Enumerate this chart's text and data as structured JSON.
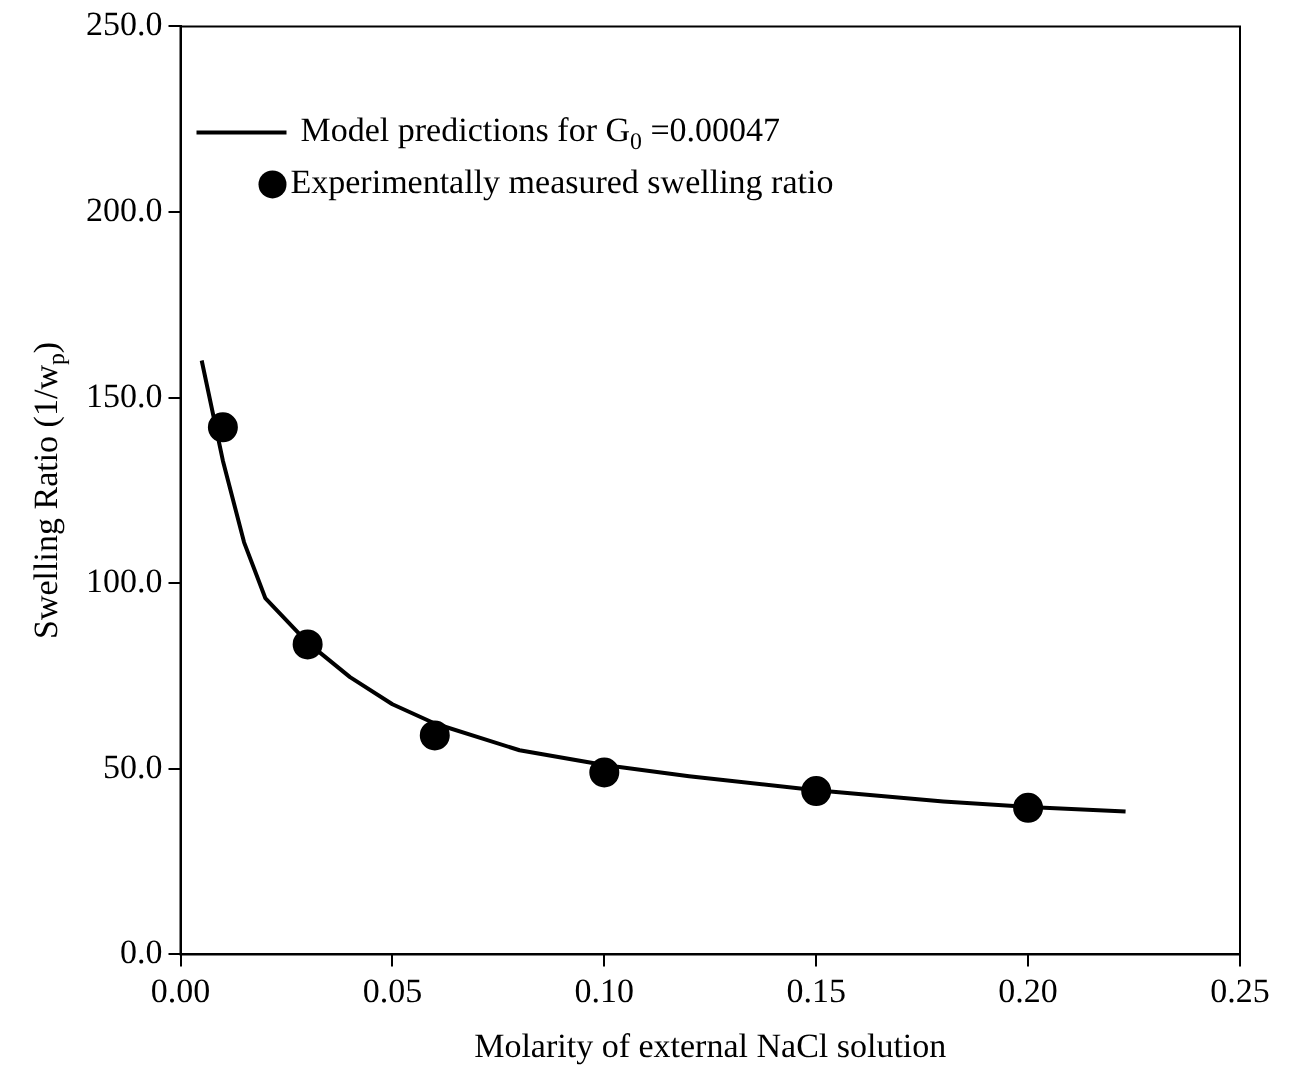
{
  "chart_data": {
    "type": "scatter",
    "xlabel": "Molarity of external NaCl solution",
    "ylabel": "Swelling Ratio (1/w$_{p}$)",
    "xlim": [
      0,
      0.25
    ],
    "xticks": [
      {
        "value": 0,
        "label": "0.00"
      },
      {
        "value": 0.05,
        "label": "0.05"
      },
      {
        "value": 0.1,
        "label": "0.10"
      },
      {
        "value": 0.15,
        "label": "0.15"
      },
      {
        "value": 0.2,
        "label": "0.20"
      },
      {
        "value": 0.25,
        "label": "0.25"
      }
    ],
    "ylim": [
      0,
      250
    ],
    "yticks": [
      {
        "value": 0,
        "label": "0.0"
      },
      {
        "value": 50,
        "label": "50.0"
      },
      {
        "value": 100,
        "label": "100.0"
      },
      {
        "value": 150,
        "label": "150.0"
      },
      {
        "value": 200,
        "label": "200.0"
      },
      {
        "value": 250,
        "label": "250.0"
      }
    ],
    "grid": false,
    "legend": "top left",
    "series": [
      {
        "name": "Model predictions for G$_{0}$ =0.00047",
        "type": "line",
        "color": "#000000",
        "marker": "none",
        "line_style": "solid",
        "x": [
          0.005,
          0.01,
          0.015,
          0.02,
          0.03,
          0.04,
          0.05,
          0.06,
          0.08,
          0.1,
          0.12,
          0.15,
          0.18,
          0.2,
          0.223
        ],
        "values": [
          160,
          133,
          111,
          96,
          84,
          74.7,
          67.4,
          62.2,
          55,
          51,
          48,
          44.2,
          41.2,
          39.7,
          38.5
        ]
      },
      {
        "name": "Experimentally measured swelling ratio",
        "type": "scatter",
        "color": "#000000",
        "marker": "circle",
        "x": [
          0.01,
          0.03,
          0.06,
          0.1,
          0.15,
          0.2
        ],
        "values": [
          142,
          83.5,
          59,
          49,
          44,
          39.5
        ]
      }
    ]
  }
}
